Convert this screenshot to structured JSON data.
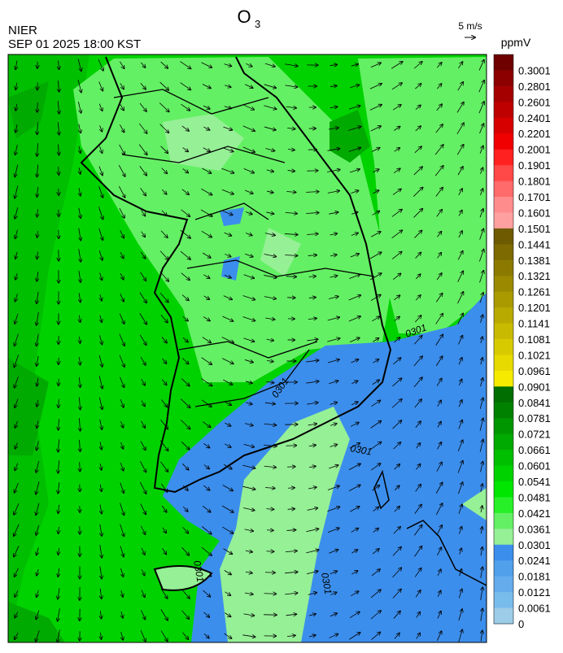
{
  "header": {
    "title": "O",
    "title_subscript": "3",
    "agency": "NIER",
    "timestamp": "SEP 01 2025 18:00 KST",
    "wind_scale": "5 m/s"
  },
  "colorbar": {
    "unit": "ppmV",
    "levels": [
      0.3001,
      0.2801,
      0.2601,
      0.2401,
      0.2201,
      0.2001,
      0.1901,
      0.1801,
      0.1701,
      0.1601,
      0.1501,
      0.1441,
      0.1381,
      0.1321,
      0.1261,
      0.1201,
      0.1141,
      0.1081,
      0.1021,
      0.0961,
      0.0901,
      0.0841,
      0.0781,
      0.0721,
      0.0661,
      0.0601,
      0.0541,
      0.0481,
      0.0421,
      0.0361,
      0.0301,
      0.0241,
      0.0181,
      0.0121,
      0.0061,
      0
    ],
    "colors": [
      "#6e0000",
      "#8c0000",
      "#a50000",
      "#be0000",
      "#d70000",
      "#f00000",
      "#ff2020",
      "#ff4848",
      "#ff6a6a",
      "#ff8c8c",
      "#ffa0a0",
      "#6e5a00",
      "#7d6a00",
      "#8c7a00",
      "#9b8a00",
      "#aa9a00",
      "#b9aa00",
      "#c8ba00",
      "#d7ca00",
      "#e6da00",
      "#f5ea00",
      "#006e00",
      "#008200",
      "#009600",
      "#00aa00",
      "#00be00",
      "#00d200",
      "#00e600",
      "#28f028",
      "#64f064",
      "#96f096",
      "#3c8eec",
      "#50a0ec",
      "#64acec",
      "#78bcec",
      "#9ccce8"
    ]
  },
  "map": {
    "contour_labels": [
      "0301",
      "0301",
      "0301",
      "0301",
      "0301"
    ]
  }
}
